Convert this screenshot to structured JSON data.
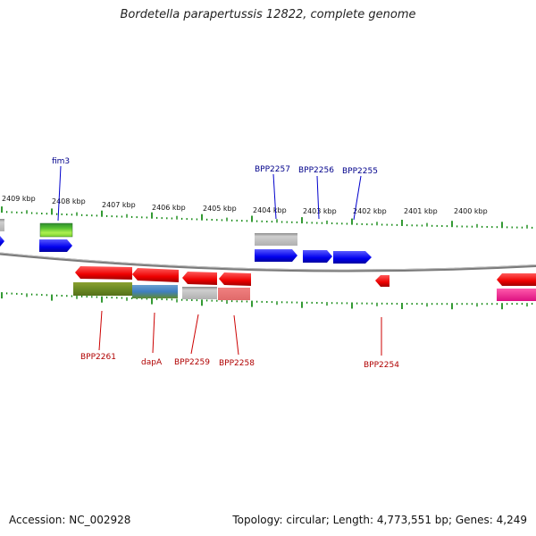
{
  "title": "Bordetella parapertussis 12822, complete genome",
  "footer": {
    "accession": "Accession: NC_002928",
    "stats": "Topology: circular; Length: 4,773,551 bp; Genes: 4,249"
  },
  "colors": {
    "forward_gene": "#0000ee",
    "reverse_gene": "#ee0000",
    "forward_label": "#00008b",
    "reverse_label": "#b00000",
    "tick": "#008000",
    "backbone": "#7a7a7a"
  },
  "scale_labels": [
    "2409 kbp",
    "2408 kbp",
    "2407 kbp",
    "2406 kbp",
    "2405 kbp",
    "2404 kbp",
    "2403 kbp",
    "2402 kbp",
    "2401 kbp",
    "2400 kbp"
  ],
  "forward_labels": [
    "fim3",
    "BPP2257",
    "BPP2256",
    "BPP2255"
  ],
  "reverse_labels": [
    "BPP2261",
    "dapA",
    "BPP2259",
    "BPP2258",
    "BPP2254"
  ]
}
